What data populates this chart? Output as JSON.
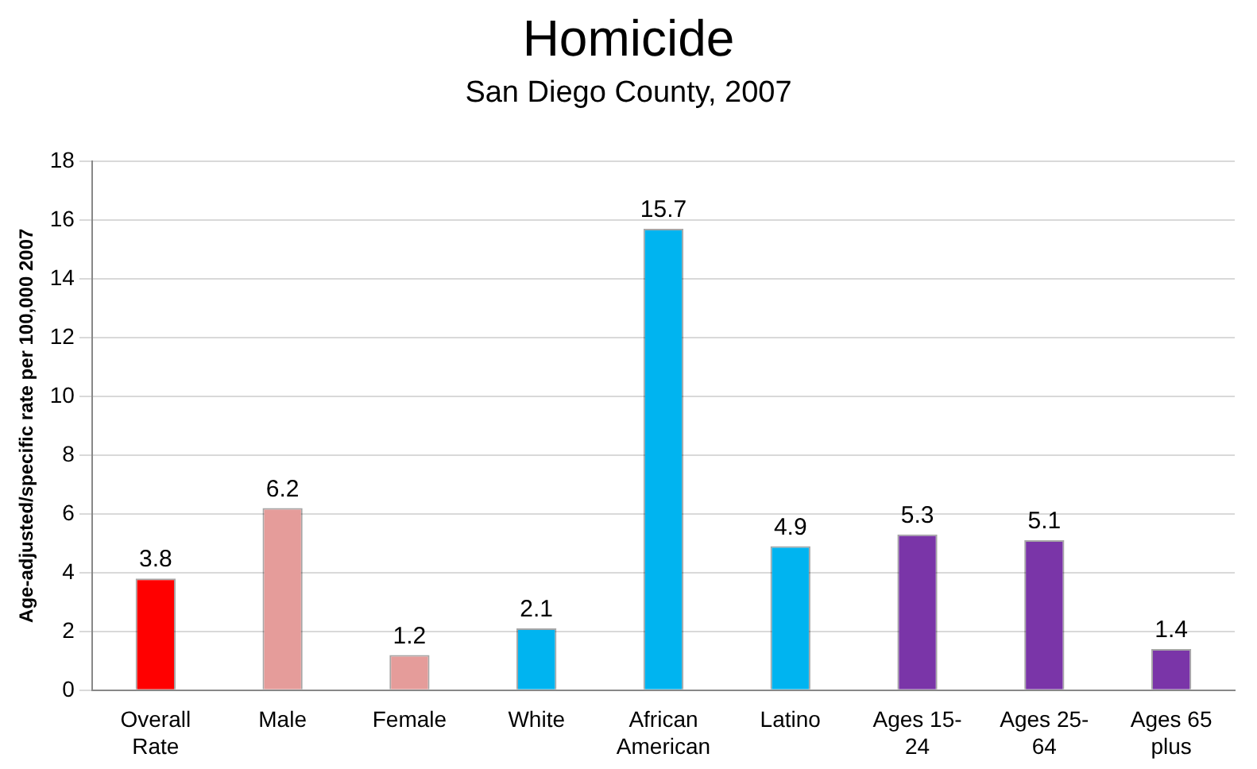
{
  "chart_data": {
    "type": "bar",
    "title": "Homicide",
    "subtitle": "San Diego County, 2007",
    "ylabel": "Age-adjusted/specific rate per 100,000 2007",
    "categories": [
      "Overall Rate",
      "Male",
      "Female",
      "White",
      "African American",
      "Latino",
      "Ages 15-24",
      "Ages 25-64",
      "Ages 65 plus"
    ],
    "values": [
      3.8,
      6.2,
      1.2,
      2.1,
      15.7,
      4.9,
      5.3,
      5.1,
      1.4
    ],
    "colors": [
      "#ff0000",
      "#e59c9a",
      "#e59c9a",
      "#00b4f0",
      "#00b4f0",
      "#00b4f0",
      "#7a35a8",
      "#7a35a8",
      "#7a35a8"
    ],
    "ylim": [
      0,
      18
    ],
    "yticks": [
      0,
      2,
      4,
      6,
      8,
      10,
      12,
      14,
      16,
      18
    ],
    "grid": "y",
    "data_labels": true,
    "legend": false
  }
}
